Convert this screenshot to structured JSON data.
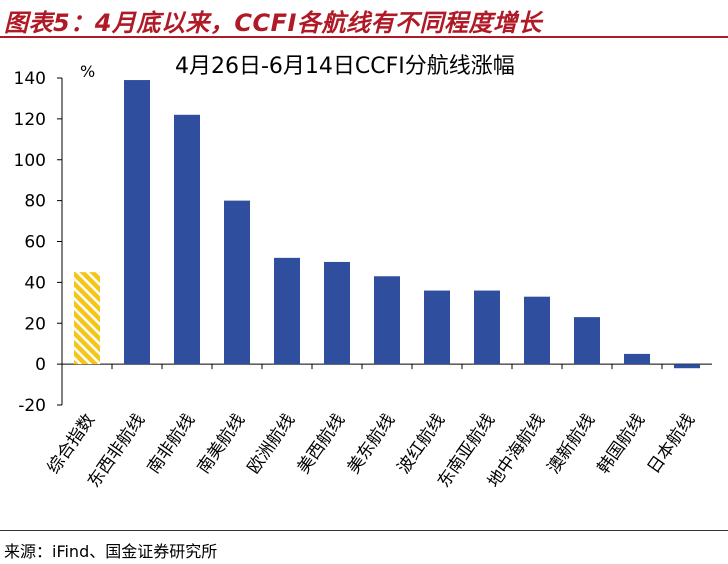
{
  "figure": {
    "title": "图表5：4月底以来，CCFI各航线有不同程度增长",
    "source": "来源：iFind、国金证券研究所"
  },
  "chart_data": {
    "type": "bar",
    "title": "4月26日-6月14日CCFI分航线涨幅",
    "unit": "%",
    "categories": [
      "综合指数",
      "东西非航线",
      "南非航线",
      "南美航线",
      "欧洲航线",
      "美西航线",
      "美东航线",
      "波红航线",
      "东南亚航线",
      "地中海航线",
      "澳新航线",
      "韩国航线",
      "日本航线"
    ],
    "values": [
      45,
      139,
      122,
      80,
      52,
      50,
      43,
      36,
      36,
      33,
      23,
      5,
      -2
    ],
    "highlight_index": 0,
    "colors": {
      "bar": "#2f4f9e",
      "highlight": "#f5c518",
      "highlight_stripe": "#ffffff"
    },
    "ylim": [
      -20,
      140
    ],
    "yticks": [
      -20,
      0,
      20,
      40,
      60,
      80,
      100,
      120,
      140
    ],
    "grid": false
  }
}
